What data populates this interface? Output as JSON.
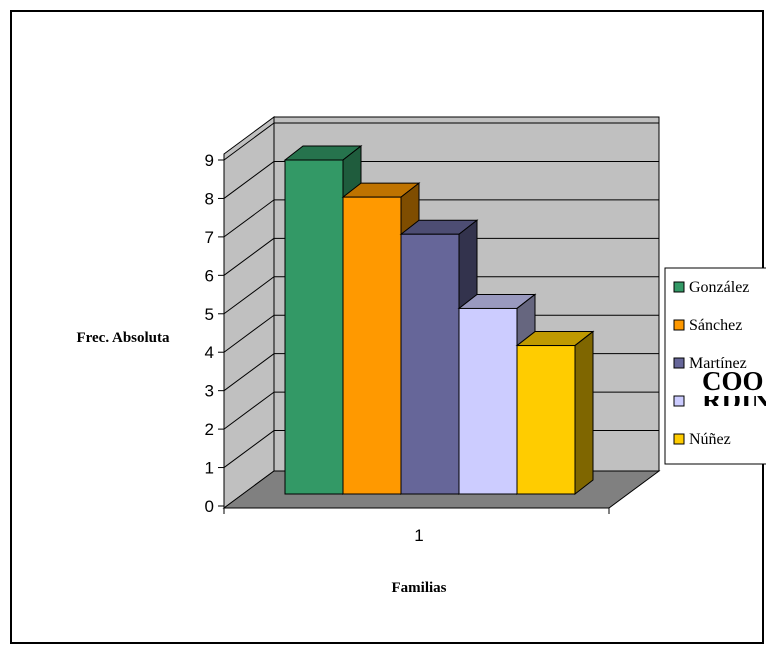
{
  "chart_data": {
    "type": "bar",
    "style": "3d-clustered-column",
    "categories": [
      "1"
    ],
    "series": [
      {
        "name": "González",
        "values": [
          9
        ],
        "color": "#339966",
        "side": "#1f5c3d",
        "top": "#26734d"
      },
      {
        "name": "Sánchez",
        "values": [
          8
        ],
        "color": "#ff9900",
        "side": "#7f4d00",
        "top": "#bf7300"
      },
      {
        "name": "Martínez",
        "values": [
          7
        ],
        "color": "#666699",
        "side": "#33334d",
        "top": "#4d4d73"
      },
      {
        "name": "",
        "values": [
          5
        ],
        "color": "#ccccff",
        "side": "#66667f",
        "top": "#9999bf"
      },
      {
        "name": "Núñez",
        "values": [
          4
        ],
        "color": "#ffcc00",
        "side": "#7f6600",
        "top": "#bf9900"
      }
    ],
    "ylim": [
      0,
      9
    ],
    "yticks": [
      "0",
      "1",
      "2",
      "3",
      "4",
      "5",
      "6",
      "7",
      "8",
      "9"
    ],
    "xlabel": "Familias",
    "ylabel": "Frec. Absoluta",
    "grid": true,
    "legend_position": "right",
    "wall_color": "#c0c0c0",
    "floor_color": "#808080",
    "overlay_text": [
      "COO",
      "RDIN"
    ]
  }
}
